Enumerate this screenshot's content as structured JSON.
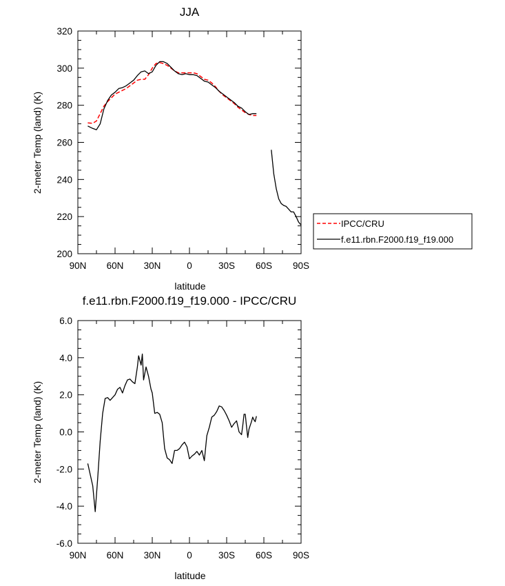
{
  "chart_data": [
    {
      "type": "line",
      "title": "JJA",
      "xlabel": "latitude",
      "ylabel": "2-meter Temp (land) (K)",
      "xlim": [
        90,
        -90
      ],
      "ylim": [
        200,
        320
      ],
      "x_ticks": [
        90,
        60,
        30,
        0,
        -30,
        -60,
        -90
      ],
      "x_tick_labels": [
        "90N",
        "60N",
        "30N",
        "0",
        "30S",
        "60S",
        "90S"
      ],
      "y_ticks": [
        200,
        220,
        240,
        260,
        280,
        300,
        320
      ],
      "y_tick_labels": [
        "200",
        "220",
        "240",
        "260",
        "280",
        "300",
        "320"
      ],
      "legend_position": "right-outside",
      "series": [
        {
          "name": "IPCC/CRU",
          "color": "#ff0000",
          "dash": "dashed",
          "segments": [
            {
              "x": [
                82,
                78,
                75,
                72,
                69,
                66,
                63,
                60,
                57,
                54,
                51,
                48,
                45,
                42,
                39,
                36,
                33,
                30,
                27,
                24,
                21,
                18,
                15,
                12,
                9,
                6,
                3,
                0,
                -3,
                -6,
                -9,
                -12,
                -15,
                -18,
                -21,
                -24,
                -27,
                -30,
                -33,
                -36,
                -39,
                -42,
                -45,
                -48,
                -51,
                -54
              ],
              "y": [
                270.5,
                270.3,
                271.5,
                275.5,
                279.5,
                282,
                284,
                286,
                287,
                288,
                289,
                290.5,
                292,
                293.5,
                294,
                294,
                296.5,
                300,
                302.5,
                303,
                302.5,
                301.5,
                300,
                298.5,
                297.5,
                297.5,
                297.5,
                297.5,
                297.5,
                297,
                295.5,
                294,
                293.5,
                292,
                290,
                287.5,
                285.5,
                284,
                282.5,
                281,
                279,
                277.5,
                276,
                275,
                274.5,
                274.5
              ]
            }
          ]
        },
        {
          "name": "f.e11.rbn.F2000.f19_f19.000",
          "color": "#000000",
          "dash": "solid",
          "segments": [
            {
              "x": [
                82,
                78,
                75,
                72,
                69,
                66,
                63,
                60,
                57,
                54,
                51,
                48,
                45,
                42,
                39,
                36,
                33,
                30,
                27,
                24,
                21,
                18,
                15,
                12,
                9,
                6,
                3,
                0,
                -3,
                -6,
                -9,
                -12,
                -15,
                -18,
                -21,
                -24,
                -27,
                -30,
                -33,
                -36,
                -39,
                -42,
                -45,
                -48,
                -51,
                -54
              ],
              "y": [
                268.8,
                267.5,
                266.8,
                270,
                278,
                282.5,
                285.5,
                287,
                289,
                289.5,
                290.5,
                292,
                293.5,
                296,
                298,
                298.5,
                297,
                298,
                301.5,
                303.5,
                303.5,
                302.5,
                300.5,
                298.5,
                297,
                296.5,
                297,
                296.5,
                296.5,
                296,
                294.5,
                293,
                292.5,
                291,
                289.5,
                287.5,
                286,
                284.5,
                283,
                281.5,
                279.5,
                278.5,
                276.5,
                275,
                275.5,
                275.5
              ]
            },
            {
              "x": [
                -66,
                -68,
                -70,
                -72,
                -74,
                -76,
                -78,
                -80,
                -82,
                -84,
                -86,
                -88,
                -90
              ],
              "y": [
                256,
                243,
                235,
                229.5,
                227,
                226,
                225.5,
                224,
                222.5,
                222.5,
                220,
                217,
                215.5
              ]
            }
          ]
        }
      ],
      "legend": [
        "IPCC/CRU",
        "f.e11.rbn.F2000.f19_f19.000"
      ]
    },
    {
      "type": "line",
      "title": "f.e11.rbn.F2000.f19_f19.000 - IPCC/CRU",
      "xlabel": "latitude",
      "ylabel": "2-meter Temp (land) (K)",
      "xlim": [
        90,
        -90
      ],
      "ylim": [
        -6,
        6
      ],
      "x_ticks": [
        90,
        60,
        30,
        0,
        -30,
        -60,
        -90
      ],
      "x_tick_labels": [
        "90N",
        "60N",
        "30N",
        "0",
        "30S",
        "60S",
        "90S"
      ],
      "y_ticks": [
        -6,
        -4,
        -2,
        0,
        2,
        4,
        6
      ],
      "y_tick_labels": [
        "-6.0",
        "-4.0",
        "-2.0",
        "0.0",
        "2.0",
        "4.0",
        "6.0"
      ],
      "series": [
        {
          "name": "",
          "color": "#000000",
          "dash": "solid",
          "segments": [
            {
              "x": [
                82,
                78,
                76,
                74,
                72,
                70,
                68,
                66,
                64,
                62,
                60,
                58,
                56,
                54,
                52,
                50,
                48,
                46,
                44,
                42,
                41,
                39,
                38,
                37,
                35,
                33,
                31,
                30,
                28,
                26,
                24,
                22,
                20,
                18,
                16,
                14,
                12,
                10,
                8,
                6,
                4,
                2,
                0,
                -2,
                -4,
                -6,
                -8,
                -10,
                -12,
                -14,
                -16,
                -18,
                -20,
                -22,
                -24,
                -26,
                -28,
                -30,
                -32,
                -34,
                -36,
                -38,
                -40,
                -42,
                -43,
                -44,
                -45,
                -46,
                -47,
                -48,
                -49,
                -50,
                -51,
                -52,
                -53,
                -54
              ],
              "y": [
                -1.7,
                -2.9,
                -4.3,
                -2.5,
                -0.5,
                1.0,
                1.8,
                1.85,
                1.7,
                1.85,
                2.0,
                2.3,
                2.4,
                2.1,
                2.5,
                2.8,
                2.85,
                2.7,
                2.6,
                3.5,
                4.1,
                3.6,
                4.2,
                2.8,
                3.5,
                3.0,
                2.3,
                2.1,
                1.0,
                1.05,
                0.95,
                0.5,
                -0.9,
                -1.4,
                -1.5,
                -1.7,
                -1.0,
                -1.0,
                -0.9,
                -0.7,
                -0.55,
                -0.8,
                -1.45,
                -1.3,
                -1.2,
                -1.05,
                -1.25,
                -1.0,
                -1.55,
                -0.2,
                0.25,
                0.8,
                0.9,
                1.1,
                1.4,
                1.35,
                1.15,
                0.9,
                0.6,
                0.25,
                0.45,
                0.6,
                0.0,
                -0.15,
                0.35,
                0.95,
                0.95,
                0.3,
                -0.3,
                0.15,
                0.35,
                0.55,
                0.8,
                0.65,
                0.55,
                0.85
              ]
            }
          ]
        }
      ]
    }
  ]
}
